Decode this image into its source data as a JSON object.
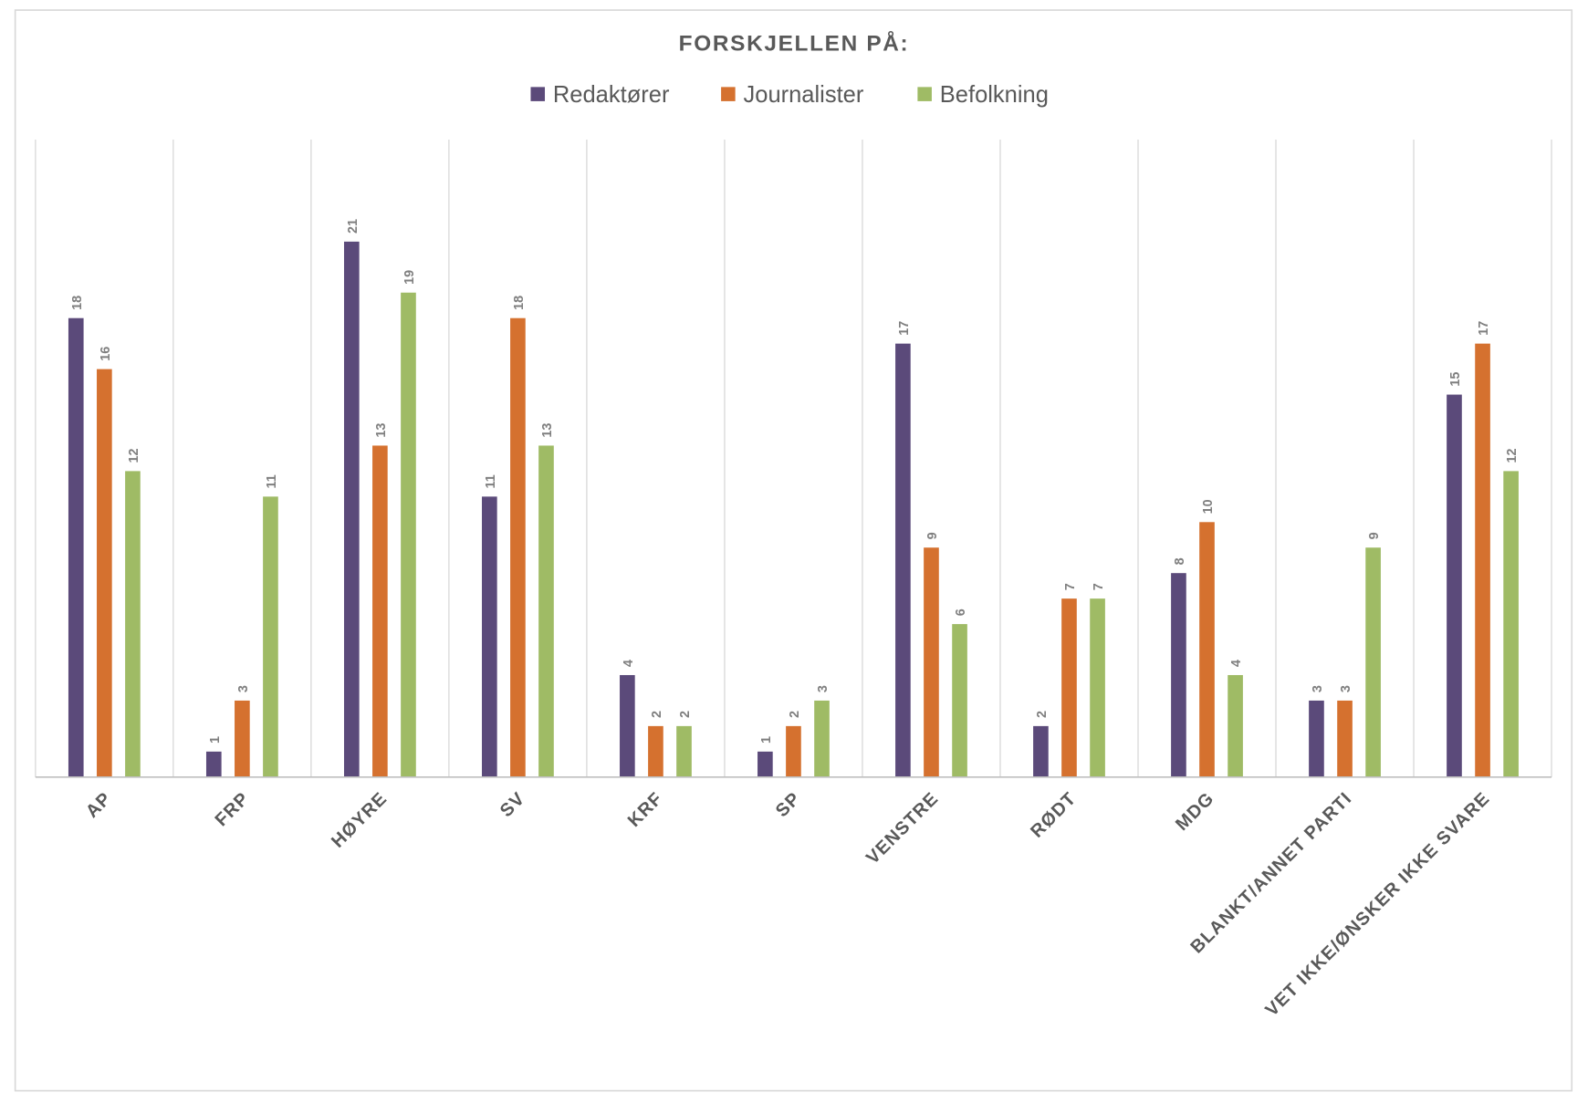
{
  "chart_data": {
    "type": "bar",
    "title": "FORSKJELLEN PÅ:",
    "xlabel": "",
    "ylabel": "",
    "ylim": [
      0,
      25
    ],
    "grid": "vertical category separators",
    "legend_position": "top",
    "categories": [
      "AP",
      "FRP",
      "HØYRE",
      "SV",
      "KRF",
      "SP",
      "VENSTRE",
      "RØDT",
      "MDG",
      "BLANKT/ANNET PARTI",
      "VET IKKE/ØNSKER IKKE SVARE"
    ],
    "series": [
      {
        "name": "Redaktører",
        "color": "#5B4A7A",
        "values": [
          18,
          1,
          21,
          11,
          4,
          1,
          17,
          2,
          8,
          3,
          15
        ]
      },
      {
        "name": "Journalister",
        "color": "#D5712F",
        "values": [
          16,
          3,
          13,
          18,
          2,
          2,
          9,
          7,
          10,
          3,
          17
        ]
      },
      {
        "name": "Befolkning",
        "color": "#9FBB65",
        "values": [
          12,
          11,
          19,
          13,
          2,
          3,
          6,
          7,
          4,
          9,
          12
        ]
      }
    ]
  }
}
